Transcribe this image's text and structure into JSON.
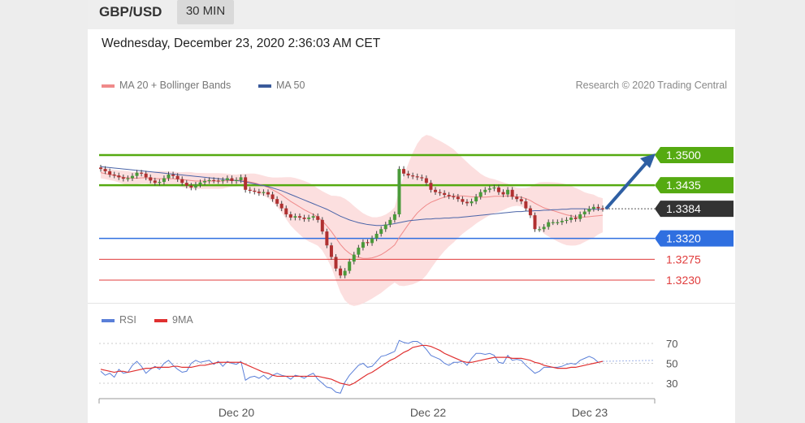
{
  "header": {
    "pair": "GBP/USD",
    "timeframe": "30 MIN"
  },
  "timestamp": "Wednesday, December 23, 2020 2:36:03 AM CET",
  "legend_main": [
    {
      "label": "MA 20 + Bollinger Bands",
      "color": "#f08a8a"
    },
    {
      "label": "MA 50",
      "color": "#3a5a9a"
    }
  ],
  "credit": "Research © 2020 Trading Central",
  "legend_rsi": [
    {
      "label": "RSI",
      "color": "#5a7fd8"
    },
    {
      "label": "9MA",
      "color": "#e03030"
    }
  ],
  "colors": {
    "green": "#55aa11",
    "blue": "#2f6fe0",
    "red": "#e03c3c",
    "current": "#333333",
    "arrow": "#2e5fa3"
  },
  "chart_data": [
    {
      "type": "candlestick",
      "title": "GBP/USD",
      "x_labels": [
        "Dec 20",
        "Dec 22",
        "Dec 23"
      ],
      "ylim": [
        1.3225,
        1.353
      ],
      "price_levels": [
        {
          "label": "1.3500",
          "value": 1.35,
          "kind": "resistance"
        },
        {
          "label": "1.3435",
          "value": 1.3435,
          "kind": "resistance"
        },
        {
          "label": "1.3384",
          "value": 1.3384,
          "kind": "current"
        },
        {
          "label": "1.3320",
          "value": 1.332,
          "kind": "pivot"
        },
        {
          "label": "1.3275",
          "value": 1.3275,
          "kind": "support"
        },
        {
          "label": "1.3230",
          "value": 1.323,
          "kind": "support"
        }
      ],
      "close": [
        1.347,
        1.3465,
        1.3458,
        1.3456,
        1.3452,
        1.3449,
        1.345,
        1.3455,
        1.3462,
        1.346,
        1.3452,
        1.3445,
        1.344,
        1.3442,
        1.345,
        1.3458,
        1.3455,
        1.3448,
        1.344,
        1.3434,
        1.343,
        1.3436,
        1.3441,
        1.3444,
        1.3446,
        1.3445,
        1.3444,
        1.3446,
        1.345,
        1.3444,
        1.3446,
        1.3452,
        1.3425,
        1.3423,
        1.3421,
        1.3418,
        1.342,
        1.3415,
        1.3405,
        1.3395,
        1.3385,
        1.3372,
        1.3365,
        1.3368,
        1.3365,
        1.3362,
        1.3365,
        1.3368,
        1.336,
        1.3335,
        1.3305,
        1.328,
        1.3255,
        1.324,
        1.325,
        1.327,
        1.3285,
        1.33,
        1.3312,
        1.331,
        1.332,
        1.333,
        1.334,
        1.335,
        1.336,
        1.3372,
        1.347,
        1.346,
        1.3456,
        1.3454,
        1.3452,
        1.345,
        1.344,
        1.3425,
        1.342,
        1.3418,
        1.3414,
        1.3411,
        1.341,
        1.3405,
        1.3399,
        1.3396,
        1.34,
        1.341,
        1.342,
        1.3425,
        1.3428,
        1.343,
        1.342,
        1.3415,
        1.3425,
        1.341,
        1.3405,
        1.34,
        1.3385,
        1.337,
        1.334,
        1.334,
        1.3345,
        1.3355,
        1.3355,
        1.3355,
        1.3358,
        1.336,
        1.3365,
        1.3362,
        1.3372,
        1.3378,
        1.3384,
        1.3388,
        1.3385,
        1.3384
      ],
      "ma20": [
        1.3462,
        1.346,
        1.3458,
        1.3456,
        1.3454,
        1.3452,
        1.3451,
        1.345,
        1.345,
        1.3451,
        1.3451,
        1.345,
        1.3449,
        1.3449,
        1.3449,
        1.3449,
        1.3449,
        1.3448,
        1.3447,
        1.3446,
        1.3445,
        1.3444,
        1.3444,
        1.3444,
        1.3444,
        1.3444,
        1.3444,
        1.3444,
        1.3445,
        1.3445,
        1.3445,
        1.3446,
        1.3444,
        1.3442,
        1.344,
        1.3437,
        1.3434,
        1.343,
        1.3425,
        1.342,
        1.3414,
        1.3407,
        1.34,
        1.3394,
        1.3388,
        1.3382,
        1.3377,
        1.3372,
        1.3366,
        1.3358,
        1.3347,
        1.3335,
        1.3321,
        1.3307,
        1.3296,
        1.3288,
        1.3282,
        1.3279,
        1.3277,
        1.3277,
        1.3278,
        1.3281,
        1.3285,
        1.3291,
        1.3298,
        1.3306,
        1.3322,
        1.3336,
        1.335,
        1.3363,
        1.3375,
        1.3384,
        1.3392,
        1.3398,
        1.3402,
        1.3406,
        1.3409,
        1.3411,
        1.3412,
        1.3412,
        1.3412,
        1.3411,
        1.341,
        1.341,
        1.3409,
        1.3409,
        1.341,
        1.3411,
        1.3411,
        1.3411,
        1.3412,
        1.3411,
        1.341,
        1.3409,
        1.3406,
        1.3402,
        1.3396,
        1.3391,
        1.3386,
        1.3383,
        1.338,
        1.3377,
        1.3374,
        1.3371,
        1.3369,
        1.3367,
        1.3366,
        1.3366,
        1.3367,
        1.3368,
        1.3369,
        1.337
      ],
      "ma50": [
        1.3475,
        1.3474,
        1.3473,
        1.3472,
        1.3471,
        1.347,
        1.3469,
        1.3468,
        1.3467,
        1.3466,
        1.3465,
        1.3464,
        1.3463,
        1.3462,
        1.3461,
        1.346,
        1.3459,
        1.3458,
        1.3457,
        1.3456,
        1.3455,
        1.3454,
        1.3453,
        1.3452,
        1.3451,
        1.345,
        1.3449,
        1.3448,
        1.3447,
        1.3446,
        1.3445,
        1.3444,
        1.3442,
        1.344,
        1.3438,
        1.3436,
        1.3434,
        1.3432,
        1.3429,
        1.3426,
        1.3423,
        1.3419,
        1.3415,
        1.3411,
        1.3407,
        1.3403,
        1.3399,
        1.3395,
        1.3391,
        1.3387,
        1.3383,
        1.3378,
        1.3373,
        1.3368,
        1.3364,
        1.336,
        1.3357,
        1.3354,
        1.3352,
        1.335,
        1.3349,
        1.3348,
        1.3348,
        1.3349,
        1.335,
        1.3352,
        1.3354,
        1.3356,
        1.3358,
        1.3359,
        1.336,
        1.3361,
        1.3362,
        1.3362,
        1.3363,
        1.3363,
        1.3364,
        1.3364,
        1.3365,
        1.3365,
        1.3366,
        1.3367,
        1.3368,
        1.3369,
        1.337,
        1.3371,
        1.3372,
        1.3373,
        1.3374,
        1.3375,
        1.3376,
        1.3377,
        1.3378,
        1.3378,
        1.3379,
        1.3379,
        1.338,
        1.338,
        1.3381,
        1.3381,
        1.3382,
        1.3382,
        1.3383,
        1.3383,
        1.3384,
        1.3384,
        1.3384,
        1.3384,
        1.3383,
        1.3383,
        1.3383,
        1.3383
      ]
    },
    {
      "type": "line",
      "title": "RSI",
      "ylim": [
        15,
        85
      ],
      "y_ticks": [
        70,
        50,
        30
      ],
      "series": [
        {
          "name": "RSI",
          "values": [
            42,
            38,
            40,
            36,
            44,
            40,
            41,
            48,
            52,
            47,
            40,
            44,
            47,
            44,
            50,
            53,
            48,
            44,
            41,
            42,
            50,
            53,
            51,
            52,
            53,
            49,
            52,
            47,
            52,
            50,
            49,
            52,
            33,
            36,
            37,
            35,
            38,
            34,
            38,
            40,
            38,
            37,
            34,
            38,
            37,
            35,
            38,
            40,
            34,
            30,
            26,
            25,
            21,
            20,
            31,
            38,
            43,
            48,
            50,
            46,
            47,
            52,
            57,
            58,
            60,
            62,
            73,
            71,
            70,
            72,
            72,
            69,
            64,
            58,
            56,
            54,
            50,
            48,
            51,
            51,
            52,
            48,
            55,
            60,
            60,
            59,
            60,
            58,
            51,
            50,
            58,
            53,
            54,
            53,
            48,
            44,
            40,
            42,
            46,
            46,
            46,
            46,
            47,
            49,
            50,
            49,
            53,
            55,
            57,
            55,
            51,
            52
          ]
        },
        {
          "name": "9MA",
          "values": [
            44,
            43,
            42,
            41,
            42,
            42,
            41,
            42,
            43,
            44,
            45,
            45,
            46,
            46,
            46,
            46,
            47,
            47,
            46,
            46,
            46,
            47,
            48,
            48,
            49,
            50,
            51,
            51,
            51,
            51,
            51,
            51,
            49,
            47,
            45,
            43,
            41,
            40,
            38,
            37,
            37,
            37,
            37,
            37,
            37,
            37,
            37,
            37,
            37,
            36,
            35,
            34,
            32,
            30,
            29,
            28,
            30,
            33,
            36,
            39,
            41,
            44,
            47,
            50,
            53,
            55,
            58,
            61,
            63,
            66,
            67,
            68,
            68,
            67,
            65,
            63,
            60,
            58,
            56,
            54,
            52,
            51,
            51,
            52,
            53,
            54,
            55,
            56,
            56,
            56,
            56,
            55,
            55,
            55,
            54,
            53,
            51,
            50,
            48,
            47,
            46,
            45,
            45,
            45,
            46,
            46,
            47,
            48,
            49,
            50,
            51,
            52
          ]
        }
      ]
    }
  ]
}
